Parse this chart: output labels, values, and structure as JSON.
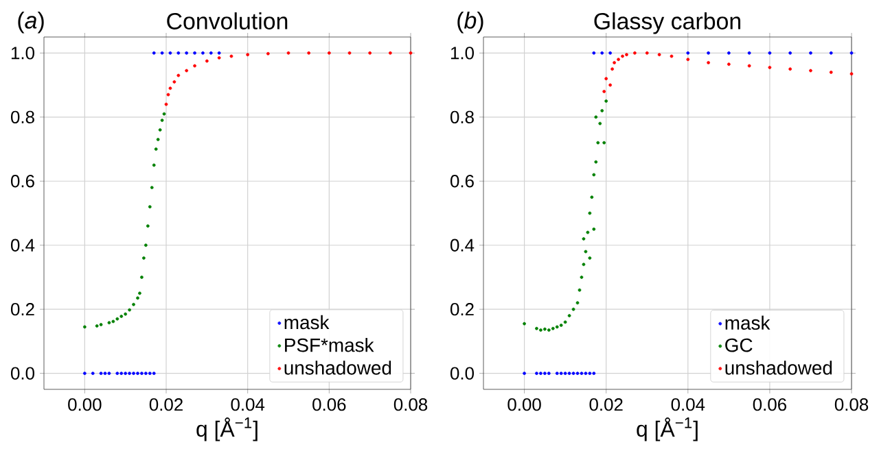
{
  "chart_data": [
    {
      "type": "scatter",
      "title": "Convolution",
      "xlabel": "q [Å$^{−1}$]",
      "annotations": [
        "(*a*)"
      ],
      "grid": true,
      "legend": "bottom right",
      "xlim": [
        -0.01,
        0.08
      ],
      "ylim": [
        -0.05,
        1.05
      ],
      "xticks": [
        {
          "value": 0,
          "label": "0.00"
        },
        {
          "value": 0.02,
          "label": "0.02"
        },
        {
          "value": 0.04,
          "label": "0.04"
        },
        {
          "value": 0.06,
          "label": "0.06"
        },
        {
          "value": 0.08,
          "label": "0.08"
        }
      ],
      "yticks": [
        {
          "value": 0,
          "label": "0.0"
        },
        {
          "value": 0.2,
          "label": "0.2"
        },
        {
          "value": 0.4,
          "label": "0.4"
        },
        {
          "value": 0.6,
          "label": "0.6"
        },
        {
          "value": 0.8,
          "label": "0.8"
        },
        {
          "value": 1,
          "label": "1.0"
        }
      ],
      "series": [
        {
          "name": "mask",
          "color": "#0000ff",
          "x": [
            0,
            0.002,
            0.004,
            0.005,
            0.006,
            0.008,
            0.009,
            0.01,
            0.011,
            0.012,
            0.013,
            0.014,
            0.015,
            0.016,
            0.017,
            0.017,
            0.019,
            0.021,
            0.023,
            0.025,
            0.027,
            0.029,
            0.031,
            0.033
          ],
          "values": [
            0,
            0,
            0,
            0,
            0,
            0,
            0,
            0,
            0,
            0,
            0,
            0,
            0,
            0,
            0,
            1,
            1,
            1,
            1,
            1,
            1,
            1,
            1,
            1
          ]
        },
        {
          "name": "PSF*mask",
          "color": "#008000",
          "x": [
            0,
            0.003,
            0.004,
            0.006,
            0.007,
            0.008,
            0.009,
            0.01,
            0.011,
            0.012,
            0.013,
            0.0135,
            0.014,
            0.0145,
            0.015,
            0.0155,
            0.016,
            0.0165,
            0.017,
            0.0175,
            0.018,
            0.0185,
            0.019,
            0.0195
          ],
          "values": [
            0.145,
            0.148,
            0.152,
            0.158,
            0.162,
            0.17,
            0.178,
            0.185,
            0.198,
            0.215,
            0.235,
            0.25,
            0.3,
            0.36,
            0.4,
            0.46,
            0.52,
            0.58,
            0.65,
            0.7,
            0.73,
            0.76,
            0.79,
            0.81
          ]
        },
        {
          "name": "unshadowed",
          "color": "#ff0000",
          "x": [
            0.02,
            0.0205,
            0.021,
            0.022,
            0.023,
            0.025,
            0.027,
            0.03,
            0.033,
            0.036,
            0.04,
            0.045,
            0.05,
            0.055,
            0.06,
            0.065,
            0.07,
            0.075,
            0.08
          ],
          "values": [
            0.84,
            0.87,
            0.89,
            0.91,
            0.93,
            0.945,
            0.96,
            0.975,
            0.985,
            0.99,
            0.995,
            0.998,
            1,
            1,
            1,
            1,
            1,
            1,
            1
          ]
        }
      ]
    },
    {
      "type": "scatter",
      "title": "Glassy carbon",
      "xlabel": "q [Å$^{−1}$]",
      "annotations": [
        "(*b*)"
      ],
      "grid": true,
      "legend": "bottom right",
      "xlim": [
        -0.01,
        0.08
      ],
      "ylim": [
        -0.05,
        1.05
      ],
      "xticks": [
        {
          "value": 0,
          "label": "0.00"
        },
        {
          "value": 0.02,
          "label": "0.02"
        },
        {
          "value": 0.04,
          "label": "0.04"
        },
        {
          "value": 0.06,
          "label": "0.06"
        },
        {
          "value": 0.08,
          "label": "0.08"
        }
      ],
      "yticks": [
        {
          "value": 0,
          "label": "0.0"
        },
        {
          "value": 0.2,
          "label": "0.2"
        },
        {
          "value": 0.4,
          "label": "0.4"
        },
        {
          "value": 0.6,
          "label": "0.6"
        },
        {
          "value": 0.8,
          "label": "0.8"
        },
        {
          "value": 1,
          "label": "1.0"
        }
      ],
      "series": [
        {
          "name": "mask",
          "color": "#0000ff",
          "x": [
            0,
            0.003,
            0.004,
            0.005,
            0.006,
            0.008,
            0.009,
            0.01,
            0.011,
            0.012,
            0.013,
            0.014,
            0.015,
            0.016,
            0.017,
            0.017,
            0.019,
            0.021,
            0.04,
            0.045,
            0.05,
            0.055,
            0.06,
            0.065,
            0.07,
            0.075,
            0.08
          ],
          "values": [
            0,
            0,
            0,
            0,
            0,
            0,
            0,
            0,
            0,
            0,
            0,
            0,
            0,
            0,
            0,
            1,
            1,
            1,
            1,
            1,
            1,
            1,
            1,
            1,
            1,
            1,
            1
          ]
        },
        {
          "name": "GC",
          "color": "#008000",
          "x": [
            0,
            0.003,
            0.004,
            0.005,
            0.006,
            0.007,
            0.008,
            0.009,
            0.01,
            0.011,
            0.012,
            0.013,
            0.0135,
            0.014,
            0.0145,
            0.0145,
            0.015,
            0.0155,
            0.016,
            0.016,
            0.0165,
            0.017,
            0.017,
            0.0175,
            0.0175,
            0.018,
            0.0185,
            0.019,
            0.0195,
            0.02
          ],
          "values": [
            0.155,
            0.14,
            0.135,
            0.138,
            0.135,
            0.14,
            0.145,
            0.15,
            0.16,
            0.18,
            0.2,
            0.22,
            0.26,
            0.3,
            0.34,
            0.42,
            0.38,
            0.44,
            0.5,
            0.36,
            0.55,
            0.62,
            0.45,
            0.66,
            0.8,
            0.72,
            0.78,
            0.82,
            0.72,
            0.85
          ]
        },
        {
          "name": "unshadowed",
          "color": "#ff0000",
          "x": [
            0.0195,
            0.02,
            0.021,
            0.0215,
            0.022,
            0.023,
            0.024,
            0.025,
            0.027,
            0.03,
            0.033,
            0.036,
            0.04,
            0.045,
            0.05,
            0.055,
            0.06,
            0.065,
            0.07,
            0.075,
            0.08
          ],
          "values": [
            0.88,
            0.92,
            0.9,
            0.95,
            0.97,
            0.98,
            0.99,
            0.995,
            1,
            1,
            0.995,
            0.99,
            0.98,
            0.97,
            0.965,
            0.96,
            0.955,
            0.95,
            0.945,
            0.94,
            0.935
          ]
        }
      ]
    }
  ]
}
